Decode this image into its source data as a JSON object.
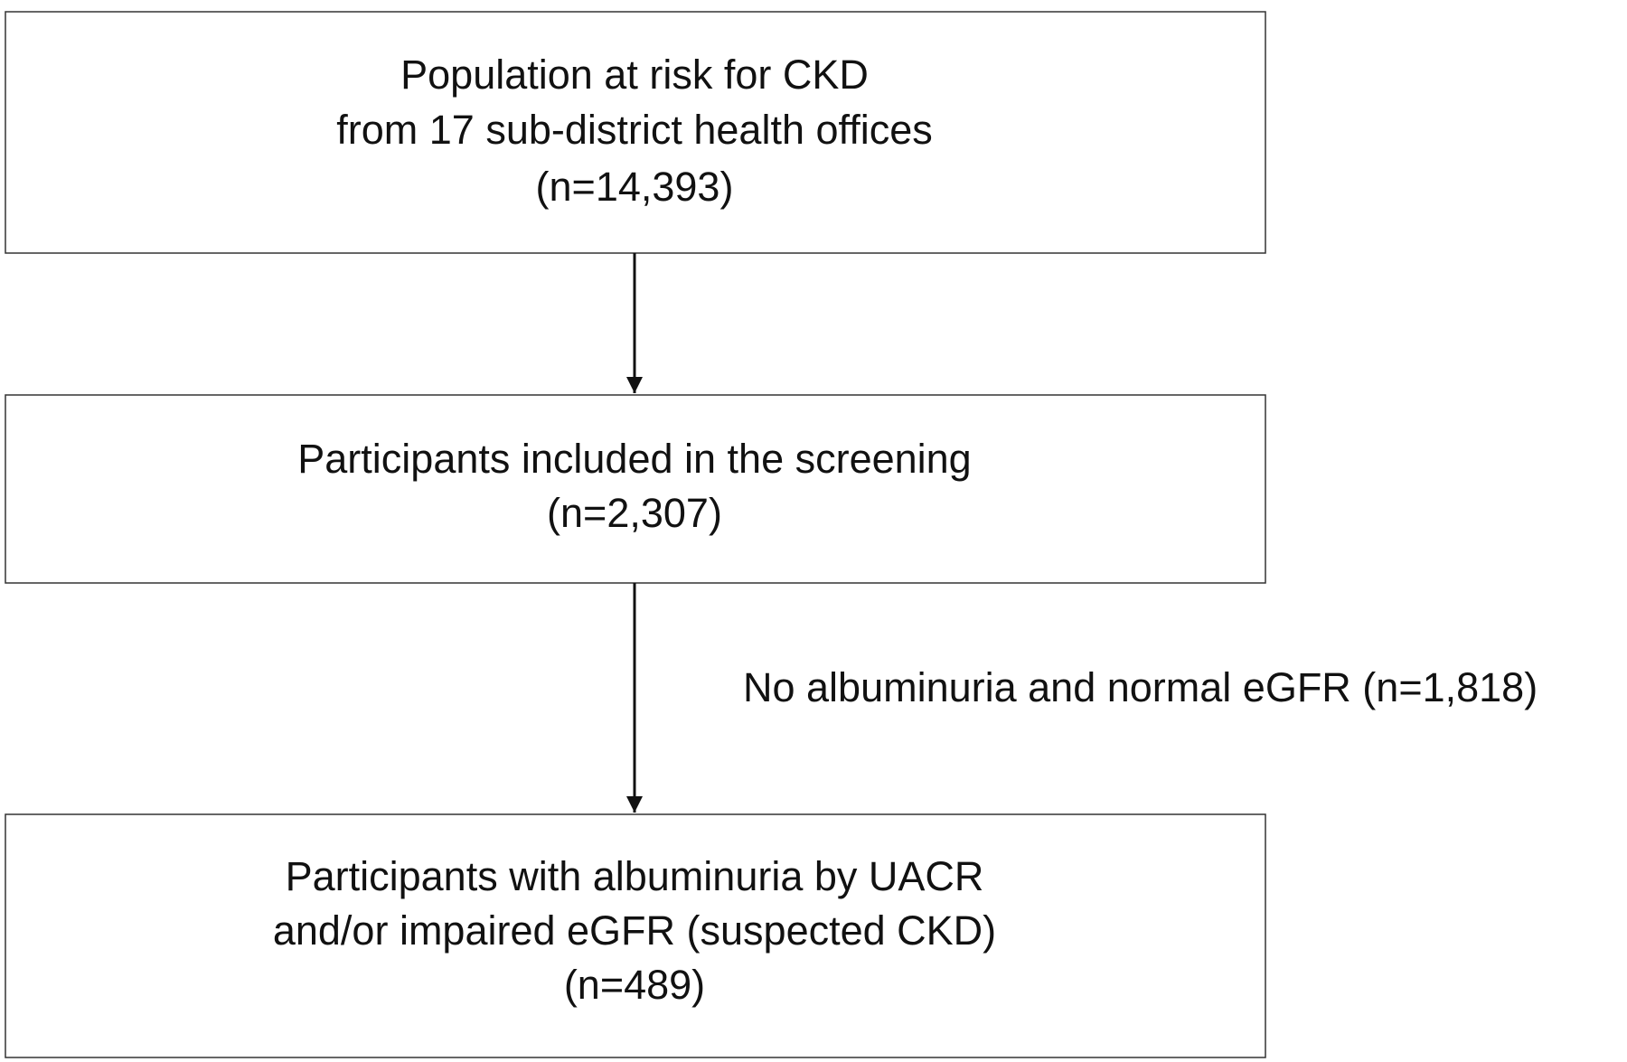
{
  "nodes": [
    {
      "lines": [
        "Population at risk for CKD",
        "from 17 sub-district health offices",
        "(n=14,393)"
      ]
    },
    {
      "lines": [
        "Participants included in the screening",
        "(n=2,307)"
      ]
    },
    {
      "lines": [
        "Participants with albuminuria by UACR",
        "and/or impaired eGFR (suspected CKD)",
        "(n=489)"
      ]
    }
  ],
  "edge_label": "No albuminuria and normal eGFR (n=1,818)"
}
